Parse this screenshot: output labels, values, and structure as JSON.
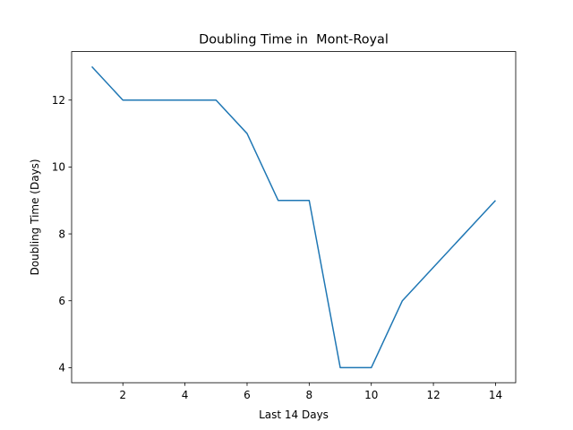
{
  "chart_data": {
    "type": "line",
    "title": "Doubling Time in  Mont-Royal",
    "xlabel": "Last 14 Days",
    "ylabel": "Doubling Time (Days)",
    "x": [
      1,
      2,
      3,
      4,
      5,
      6,
      7,
      8,
      9,
      10,
      11,
      12,
      13,
      14
    ],
    "series": [
      {
        "values": [
          13,
          12,
          12,
          12,
          12,
          11,
          9,
          9,
          4,
          4,
          6,
          7,
          8,
          9
        ],
        "color": "#1f77b4"
      }
    ],
    "xlim": [
      0.35,
      14.65
    ],
    "ylim": [
      3.55,
      13.45
    ],
    "xticks": [
      2,
      4,
      6,
      8,
      10,
      12,
      14
    ],
    "yticks": [
      4,
      6,
      8,
      10,
      12
    ],
    "grid": false,
    "legend": "none"
  }
}
